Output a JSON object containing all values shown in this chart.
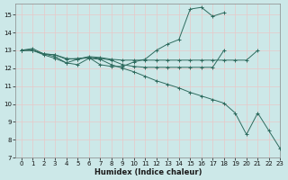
{
  "xlabel": "Humidex (Indice chaleur)",
  "bg_color": "#cce8e8",
  "grid_color": "#e8c8c8",
  "line_color": "#2e6b5e",
  "xlim": [
    -0.5,
    23
  ],
  "ylim": [
    7,
    15.6
  ],
  "yticks": [
    7,
    8,
    9,
    10,
    11,
    12,
    13,
    14,
    15
  ],
  "xticks": [
    0,
    1,
    2,
    3,
    4,
    5,
    6,
    7,
    8,
    9,
    10,
    11,
    12,
    13,
    14,
    15,
    16,
    17,
    18,
    19,
    20,
    21,
    22,
    23
  ],
  "line1_x": [
    0,
    1,
    2,
    3,
    4,
    5,
    6,
    7,
    8,
    9,
    10,
    11,
    12,
    13,
    14,
    15,
    16,
    17,
    18
  ],
  "line1_y": [
    13.0,
    13.1,
    12.8,
    12.75,
    12.5,
    12.55,
    12.6,
    12.2,
    12.1,
    12.1,
    12.35,
    12.5,
    13.0,
    13.35,
    13.6,
    15.3,
    15.4,
    14.9,
    15.1
  ],
  "line2_x": [
    0,
    1,
    2,
    3,
    4,
    5,
    6,
    7,
    8,
    9,
    10,
    11,
    12,
    13,
    14,
    15,
    16,
    17,
    18,
    19,
    20,
    21
  ],
  "line2_y": [
    13.0,
    13.0,
    12.8,
    12.75,
    12.55,
    12.5,
    12.65,
    12.6,
    12.5,
    12.45,
    12.45,
    12.45,
    12.45,
    12.45,
    12.45,
    12.45,
    12.45,
    12.45,
    12.45,
    12.45,
    12.45,
    13.0
  ],
  "line3_x": [
    0,
    1,
    2,
    3,
    4,
    5,
    6,
    7,
    8,
    9,
    10,
    11,
    12,
    13,
    14,
    15,
    16,
    17,
    18
  ],
  "line3_y": [
    13.0,
    13.0,
    12.75,
    12.55,
    12.3,
    12.5,
    12.6,
    12.55,
    12.45,
    12.2,
    12.1,
    12.05,
    12.05,
    12.05,
    12.05,
    12.05,
    12.05,
    12.05,
    13.0
  ],
  "line4_x": [
    0,
    1,
    2,
    3,
    4,
    5,
    6,
    7,
    8,
    9,
    10,
    11,
    12,
    13,
    14,
    15,
    16,
    17,
    18,
    19,
    20,
    21,
    22,
    23
  ],
  "line4_y": [
    13.0,
    13.0,
    12.8,
    12.65,
    12.3,
    12.2,
    12.55,
    12.5,
    12.2,
    12.0,
    11.8,
    11.55,
    11.3,
    11.1,
    10.9,
    10.65,
    10.45,
    10.25,
    10.05,
    9.5,
    8.3,
    9.5,
    8.5,
    7.5
  ]
}
